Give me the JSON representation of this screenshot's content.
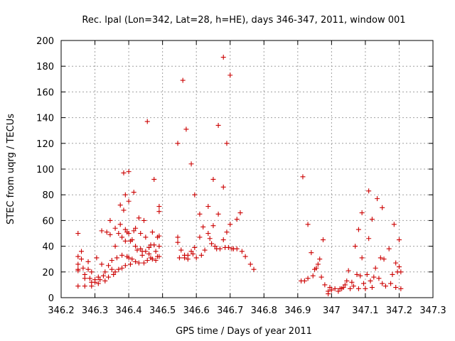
{
  "chart_data": {
    "type": "scatter",
    "title": "Rec. lpal (Lon=342, Lat=28, h=HE), days 346-347, 2011, window 001",
    "xlabel": "GPS time / Days of year 2011",
    "ylabel": "STEC from uqrg / TECUs",
    "xlim": [
      346.2,
      347.3
    ],
    "ylim": [
      0,
      200
    ],
    "xticks": [
      346.2,
      346.3,
      346.4,
      346.5,
      346.6,
      346.7,
      346.8,
      346.9,
      347,
      347.1,
      347.2,
      347.3
    ],
    "xtick_labels": [
      "346.2",
      "346.3",
      "346.4",
      "346.5",
      "346.6",
      "346.7",
      "346.8",
      "346.9",
      "347",
      "347.1",
      "347.2",
      "347.3"
    ],
    "yticks": [
      0,
      20,
      40,
      60,
      80,
      100,
      120,
      140,
      160,
      180,
      200
    ],
    "ytick_labels": [
      "0",
      "20",
      "40",
      "60",
      "80",
      "100",
      "120",
      "140",
      "160",
      "180",
      "200"
    ],
    "grid": true,
    "marker": "+",
    "color": "#cc0000",
    "points": [
      [
        346.25,
        50
      ],
      [
        346.25,
        32
      ],
      [
        346.25,
        26
      ],
      [
        346.25,
        22
      ],
      [
        346.25,
        21
      ],
      [
        346.25,
        9
      ],
      [
        346.26,
        36
      ],
      [
        346.26,
        30
      ],
      [
        346.265,
        23
      ],
      [
        346.27,
        18
      ],
      [
        346.27,
        15
      ],
      [
        346.27,
        9
      ],
      [
        346.28,
        28
      ],
      [
        346.28,
        22
      ],
      [
        346.285,
        15
      ],
      [
        346.29,
        9
      ],
      [
        346.29,
        12
      ],
      [
        346.29,
        20
      ],
      [
        346.3,
        14
      ],
      [
        346.3,
        12
      ],
      [
        346.305,
        31
      ],
      [
        346.31,
        16
      ],
      [
        346.31,
        11
      ],
      [
        346.315,
        14
      ],
      [
        346.32,
        52
      ],
      [
        346.32,
        26
      ],
      [
        346.325,
        17
      ],
      [
        346.33,
        13
      ],
      [
        346.33,
        20
      ],
      [
        346.335,
        51
      ],
      [
        346.34,
        25
      ],
      [
        346.34,
        16
      ],
      [
        346.345,
        49
      ],
      [
        346.345,
        60
      ],
      [
        346.35,
        22
      ],
      [
        346.35,
        29
      ],
      [
        346.355,
        18
      ],
      [
        346.36,
        54
      ],
      [
        346.36,
        40
      ],
      [
        346.36,
        20
      ],
      [
        346.365,
        31
      ],
      [
        346.37,
        50
      ],
      [
        346.37,
        22
      ],
      [
        346.375,
        57
      ],
      [
        346.375,
        72
      ],
      [
        346.38,
        47
      ],
      [
        346.38,
        33
      ],
      [
        346.38,
        23
      ],
      [
        346.385,
        97
      ],
      [
        346.385,
        68
      ],
      [
        346.39,
        80
      ],
      [
        346.39,
        53
      ],
      [
        346.39,
        44
      ],
      [
        346.39,
        25
      ],
      [
        346.395,
        32
      ],
      [
        346.395,
        51
      ],
      [
        346.4,
        98
      ],
      [
        346.4,
        75
      ],
      [
        346.4,
        50
      ],
      [
        346.4,
        31
      ],
      [
        346.405,
        26
      ],
      [
        346.405,
        44
      ],
      [
        346.41,
        45
      ],
      [
        346.41,
        30
      ],
      [
        346.415,
        82
      ],
      [
        346.415,
        52
      ],
      [
        346.42,
        54
      ],
      [
        346.42,
        40
      ],
      [
        346.42,
        28
      ],
      [
        346.425,
        37
      ],
      [
        346.43,
        62
      ],
      [
        346.43,
        27
      ],
      [
        346.435,
        50
      ],
      [
        346.435,
        38
      ],
      [
        346.44,
        36
      ],
      [
        346.44,
        33
      ],
      [
        346.445,
        60
      ],
      [
        346.445,
        27
      ],
      [
        346.45,
        36
      ],
      [
        346.45,
        47
      ],
      [
        346.455,
        29
      ],
      [
        346.455,
        137
      ],
      [
        346.46,
        39
      ],
      [
        346.46,
        34
      ],
      [
        346.465,
        41
      ],
      [
        346.465,
        31
      ],
      [
        346.47,
        51
      ],
      [
        346.47,
        30
      ],
      [
        346.475,
        92
      ],
      [
        346.475,
        41
      ],
      [
        346.48,
        36
      ],
      [
        346.48,
        29
      ],
      [
        346.485,
        32
      ],
      [
        346.485,
        47
      ],
      [
        346.49,
        71
      ],
      [
        346.49,
        67
      ],
      [
        346.49,
        48
      ],
      [
        346.49,
        40
      ],
      [
        346.49,
        32
      ],
      [
        346.545,
        120
      ],
      [
        346.545,
        47
      ],
      [
        346.545,
        43
      ],
      [
        346.55,
        31
      ],
      [
        346.555,
        37
      ],
      [
        346.56,
        169
      ],
      [
        346.565,
        31
      ],
      [
        346.565,
        33
      ],
      [
        346.57,
        131
      ],
      [
        346.575,
        33
      ],
      [
        346.575,
        30
      ],
      [
        346.585,
        104
      ],
      [
        346.585,
        36
      ],
      [
        346.59,
        34
      ],
      [
        346.595,
        80
      ],
      [
        346.595,
        39
      ],
      [
        346.6,
        31
      ],
      [
        346.61,
        65
      ],
      [
        346.61,
        47
      ],
      [
        346.615,
        33
      ],
      [
        346.62,
        55
      ],
      [
        346.625,
        37
      ],
      [
        346.635,
        71
      ],
      [
        346.635,
        50
      ],
      [
        346.64,
        46
      ],
      [
        346.645,
        42
      ],
      [
        346.65,
        92
      ],
      [
        346.65,
        56
      ],
      [
        346.655,
        40
      ],
      [
        346.66,
        38
      ],
      [
        346.665,
        134
      ],
      [
        346.665,
        65
      ],
      [
        346.67,
        38
      ],
      [
        346.68,
        187
      ],
      [
        346.68,
        86
      ],
      [
        346.68,
        45
      ],
      [
        346.685,
        39
      ],
      [
        346.69,
        120
      ],
      [
        346.69,
        51
      ],
      [
        346.695,
        39
      ],
      [
        346.7,
        173
      ],
      [
        346.7,
        57
      ],
      [
        346.705,
        38
      ],
      [
        346.71,
        38
      ],
      [
        346.72,
        61
      ],
      [
        346.72,
        38
      ],
      [
        346.73,
        66
      ],
      [
        346.735,
        36
      ],
      [
        346.745,
        32
      ],
      [
        346.76,
        26
      ],
      [
        346.77,
        22
      ],
      [
        346.91,
        13
      ],
      [
        346.915,
        94
      ],
      [
        346.92,
        13
      ],
      [
        346.93,
        57
      ],
      [
        346.93,
        15
      ],
      [
        346.94,
        35
      ],
      [
        346.945,
        17
      ],
      [
        346.95,
        22
      ],
      [
        346.955,
        23
      ],
      [
        346.96,
        26
      ],
      [
        346.965,
        30
      ],
      [
        346.97,
        16
      ],
      [
        346.975,
        45
      ],
      [
        346.98,
        10
      ],
      [
        346.99,
        5
      ],
      [
        346.99,
        3
      ],
      [
        346.995,
        8
      ],
      [
        347.0,
        6
      ],
      [
        347.01,
        7
      ],
      [
        347.02,
        5
      ],
      [
        347.025,
        7
      ],
      [
        347.03,
        7
      ],
      [
        347.035,
        8
      ],
      [
        347.04,
        10
      ],
      [
        347.045,
        13
      ],
      [
        347.05,
        21
      ],
      [
        347.055,
        7
      ],
      [
        347.06,
        12
      ],
      [
        347.065,
        9
      ],
      [
        347.07,
        40
      ],
      [
        347.075,
        18
      ],
      [
        347.08,
        53
      ],
      [
        347.08,
        7
      ],
      [
        347.085,
        17
      ],
      [
        347.09,
        66
      ],
      [
        347.09,
        31
      ],
      [
        347.095,
        11
      ],
      [
        347.1,
        7
      ],
      [
        347.105,
        18
      ],
      [
        347.11,
        83
      ],
      [
        347.11,
        46
      ],
      [
        347.115,
        13
      ],
      [
        347.12,
        61
      ],
      [
        347.12,
        8
      ],
      [
        347.125,
        16
      ],
      [
        347.13,
        23
      ],
      [
        347.135,
        77
      ],
      [
        347.14,
        15
      ],
      [
        347.145,
        31
      ],
      [
        347.15,
        70
      ],
      [
        347.15,
        11
      ],
      [
        347.155,
        30
      ],
      [
        347.16,
        9
      ],
      [
        347.17,
        38
      ],
      [
        347.175,
        11
      ],
      [
        347.18,
        18
      ],
      [
        347.185,
        57
      ],
      [
        347.19,
        27
      ],
      [
        347.19,
        8
      ],
      [
        347.195,
        20
      ],
      [
        347.2,
        45
      ],
      [
        347.2,
        24
      ],
      [
        347.205,
        20
      ],
      [
        347.205,
        7
      ]
    ]
  }
}
